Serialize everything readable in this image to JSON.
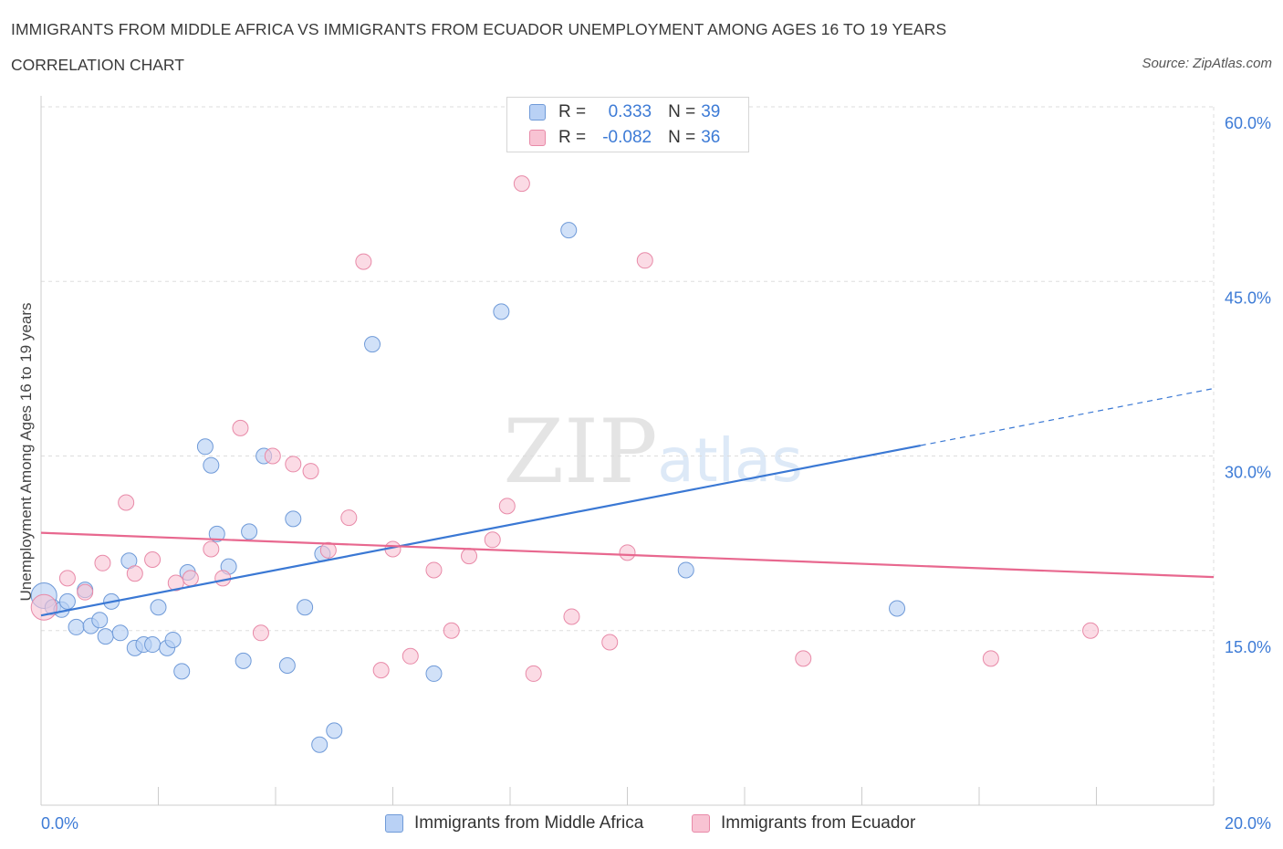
{
  "header": {
    "title": "IMMIGRANTS FROM MIDDLE AFRICA VS IMMIGRANTS FROM ECUADOR UNEMPLOYMENT AMONG AGES 16 TO 19 YEARS",
    "subtitle": "CORRELATION CHART",
    "source": "Source: ZipAtlas.com"
  },
  "legend": {
    "series1": {
      "r_label": "R =",
      "r_value": "0.333",
      "n_label": "N =",
      "n_value": "39"
    },
    "series2": {
      "r_label": "R =",
      "r_value": "-0.082",
      "n_label": "N =",
      "n_value": "36"
    }
  },
  "bottom_legend": {
    "series1_label": "Immigrants from Middle Africa",
    "series2_label": "Immigrants from Ecuador"
  },
  "watermark": {
    "zip": "ZIP",
    "atlas": "atlas"
  },
  "colors": {
    "series1_fill": "#b9d1f5",
    "series1_stroke": "#6f9ad8",
    "series1_line": "#3a78d4",
    "series2_fill": "#f8c3d3",
    "series2_stroke": "#e88aa8",
    "series2_line": "#e8688f",
    "tick_label": "#3d7bd6",
    "grid": "#dddddd"
  },
  "chart_data": {
    "type": "scatter",
    "title": "IMMIGRANTS FROM MIDDLE AFRICA VS IMMIGRANTS FROM ECUADOR UNEMPLOYMENT AMONG AGES 16 TO 19 YEARS",
    "subtitle": "CORRELATION CHART",
    "xlabel": "",
    "ylabel": "Unemployment Among Ages 16 to 19 years",
    "xlim": [
      0,
      20
    ],
    "ylim": [
      0,
      60
    ],
    "x_tick_labels": [
      "0.0%",
      "20.0%"
    ],
    "y_ticks": [
      15,
      30,
      45,
      60
    ],
    "y_tick_labels": [
      "15.0%",
      "30.0%",
      "45.0%",
      "60.0%"
    ],
    "grid": true,
    "legend_position": "top-center",
    "series": [
      {
        "name": "Immigrants from Middle Africa",
        "R": 0.333,
        "N": 39,
        "trend": {
          "x": [
            0,
            15
          ],
          "y": [
            16.3,
            30.9
          ],
          "dashed_to_x": 20,
          "dashed_to_y": 35.8
        },
        "points": [
          {
            "x": 0.05,
            "y": 18.0
          },
          {
            "x": 0.2,
            "y": 17.0
          },
          {
            "x": 0.35,
            "y": 16.8
          },
          {
            "x": 0.45,
            "y": 17.5
          },
          {
            "x": 0.6,
            "y": 15.3
          },
          {
            "x": 0.75,
            "y": 18.5
          },
          {
            "x": 0.85,
            "y": 15.4
          },
          {
            "x": 1.0,
            "y": 15.9
          },
          {
            "x": 1.1,
            "y": 14.5
          },
          {
            "x": 1.2,
            "y": 17.5
          },
          {
            "x": 1.35,
            "y": 14.8
          },
          {
            "x": 1.5,
            "y": 21.0
          },
          {
            "x": 1.6,
            "y": 13.5
          },
          {
            "x": 1.75,
            "y": 13.8
          },
          {
            "x": 1.9,
            "y": 13.8
          },
          {
            "x": 2.0,
            "y": 17.0
          },
          {
            "x": 2.15,
            "y": 13.5
          },
          {
            "x": 2.25,
            "y": 14.2
          },
          {
            "x": 2.4,
            "y": 11.5
          },
          {
            "x": 2.5,
            "y": 20.0
          },
          {
            "x": 2.8,
            "y": 30.8
          },
          {
            "x": 2.9,
            "y": 29.2
          },
          {
            "x": 3.0,
            "y": 23.3
          },
          {
            "x": 3.2,
            "y": 20.5
          },
          {
            "x": 3.45,
            "y": 12.4
          },
          {
            "x": 3.55,
            "y": 23.5
          },
          {
            "x": 3.8,
            "y": 30.0
          },
          {
            "x": 4.2,
            "y": 12.0
          },
          {
            "x": 4.3,
            "y": 24.6
          },
          {
            "x": 4.5,
            "y": 17.0
          },
          {
            "x": 4.75,
            "y": 5.2
          },
          {
            "x": 4.8,
            "y": 21.6
          },
          {
            "x": 5.0,
            "y": 6.4
          },
          {
            "x": 5.65,
            "y": 39.6
          },
          {
            "x": 6.7,
            "y": 11.3
          },
          {
            "x": 7.85,
            "y": 42.4
          },
          {
            "x": 9.0,
            "y": 49.4
          },
          {
            "x": 11.0,
            "y": 20.2
          },
          {
            "x": 14.6,
            "y": 16.9
          }
        ]
      },
      {
        "name": "Immigrants from Ecuador",
        "R": -0.082,
        "N": 36,
        "trend": {
          "x": [
            0,
            20
          ],
          "y": [
            23.4,
            19.6
          ]
        },
        "points": [
          {
            "x": 0.05,
            "y": 17.0
          },
          {
            "x": 0.45,
            "y": 19.5
          },
          {
            "x": 0.75,
            "y": 18.3
          },
          {
            "x": 1.05,
            "y": 20.8
          },
          {
            "x": 1.45,
            "y": 26.0
          },
          {
            "x": 1.6,
            "y": 19.9
          },
          {
            "x": 1.9,
            "y": 21.1
          },
          {
            "x": 2.3,
            "y": 19.1
          },
          {
            "x": 2.55,
            "y": 19.5
          },
          {
            "x": 2.9,
            "y": 22.0
          },
          {
            "x": 3.1,
            "y": 19.5
          },
          {
            "x": 3.4,
            "y": 32.4
          },
          {
            "x": 3.75,
            "y": 14.8
          },
          {
            "x": 3.95,
            "y": 30.0
          },
          {
            "x": 4.3,
            "y": 29.3
          },
          {
            "x": 4.6,
            "y": 28.7
          },
          {
            "x": 4.9,
            "y": 21.9
          },
          {
            "x": 5.25,
            "y": 24.7
          },
          {
            "x": 5.5,
            "y": 46.7
          },
          {
            "x": 5.8,
            "y": 11.6
          },
          {
            "x": 6.0,
            "y": 22.0
          },
          {
            "x": 6.3,
            "y": 12.8
          },
          {
            "x": 6.7,
            "y": 20.2
          },
          {
            "x": 7.0,
            "y": 15.0
          },
          {
            "x": 7.3,
            "y": 21.4
          },
          {
            "x": 7.7,
            "y": 22.8
          },
          {
            "x": 7.95,
            "y": 25.7
          },
          {
            "x": 8.2,
            "y": 53.4
          },
          {
            "x": 8.4,
            "y": 11.3
          },
          {
            "x": 9.05,
            "y": 16.2
          },
          {
            "x": 9.7,
            "y": 14.0
          },
          {
            "x": 10.0,
            "y": 21.7
          },
          {
            "x": 10.3,
            "y": 46.8
          },
          {
            "x": 13.0,
            "y": 12.6
          },
          {
            "x": 16.2,
            "y": 12.6
          },
          {
            "x": 17.9,
            "y": 15.0
          }
        ]
      }
    ]
  }
}
